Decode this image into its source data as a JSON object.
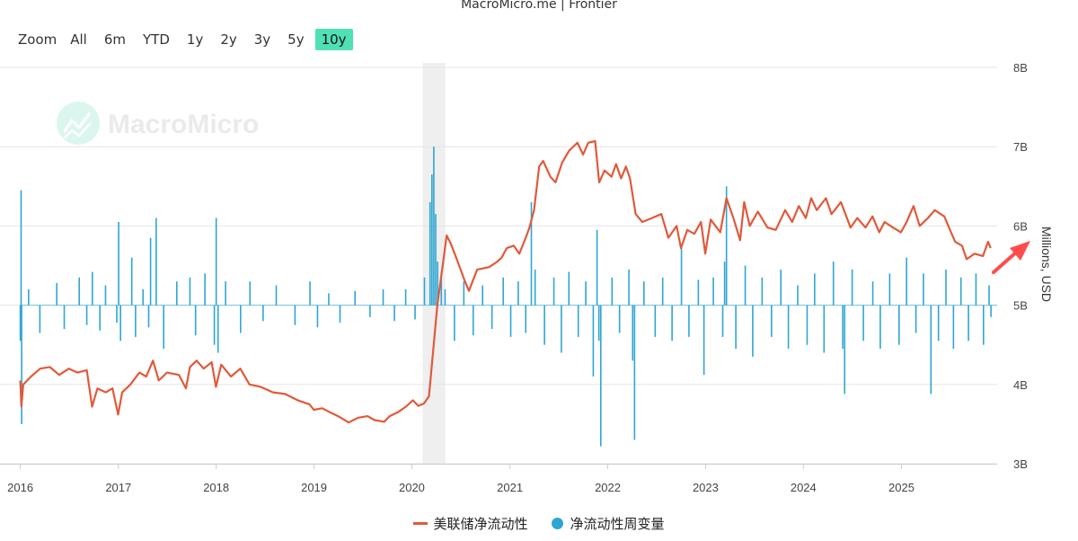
{
  "header": {
    "credit": "MacroMicro.me | Frontier"
  },
  "zoom": {
    "label": "Zoom",
    "buttons": [
      "All",
      "6m",
      "YTD",
      "1y",
      "2y",
      "3y",
      "5y",
      "10y"
    ],
    "active": "10y",
    "active_color": "#4fe0b6"
  },
  "watermark": {
    "text": "MacroMicro"
  },
  "chart_data": {
    "type": "line",
    "x_axis": {
      "type": "time",
      "range": [
        "2015-12-30",
        "2025-12-24"
      ],
      "tick_labels": [
        "2016",
        "2017",
        "2018",
        "2019",
        "2020",
        "2021",
        "2022",
        "2023",
        "2024",
        "2025"
      ]
    },
    "y_axis": {
      "range": [
        3,
        8
      ],
      "tick_labels": [
        "3B",
        "4B",
        "5B",
        "6B",
        "7B",
        "8B"
      ],
      "ticks": [
        3,
        4,
        5,
        6,
        7,
        8
      ],
      "label": "Millions, USD",
      "position": "right"
    },
    "grid": true,
    "legend_position": "bottom",
    "highlight_band": {
      "from": "2020-02-10",
      "to": "2020-05-05",
      "color": "#efefef"
    },
    "series": [
      {
        "name": "美联储净流动性",
        "type": "line",
        "color": "#e05a3a",
        "points": [
          [
            "2016-01-01",
            4.05
          ],
          [
            "2016-01-05",
            3.72
          ],
          [
            "2016-01-12",
            4.0
          ],
          [
            "2016-02-10",
            4.1
          ],
          [
            "2016-03-15",
            4.2
          ],
          [
            "2016-04-20",
            4.22
          ],
          [
            "2016-05-25",
            4.12
          ],
          [
            "2016-06-30",
            4.2
          ],
          [
            "2016-08-01",
            4.15
          ],
          [
            "2016-09-05",
            4.18
          ],
          [
            "2016-09-25",
            3.72
          ],
          [
            "2016-10-15",
            3.95
          ],
          [
            "2016-11-15",
            3.9
          ],
          [
            "2016-12-10",
            3.95
          ],
          [
            "2016-12-31",
            3.62
          ],
          [
            "2017-01-15",
            3.9
          ],
          [
            "2017-02-15",
            4.0
          ],
          [
            "2017-03-20",
            4.15
          ],
          [
            "2017-04-15",
            4.1
          ],
          [
            "2017-05-10",
            4.3
          ],
          [
            "2017-06-01",
            4.05
          ],
          [
            "2017-07-01",
            4.15
          ],
          [
            "2017-08-15",
            4.12
          ],
          [
            "2017-09-10",
            3.95
          ],
          [
            "2017-09-25",
            4.22
          ],
          [
            "2017-10-20",
            4.3
          ],
          [
            "2017-11-15",
            4.2
          ],
          [
            "2017-12-15",
            4.28
          ],
          [
            "2017-12-31",
            3.97
          ],
          [
            "2018-01-20",
            4.25
          ],
          [
            "2018-02-25",
            4.1
          ],
          [
            "2018-04-01",
            4.2
          ],
          [
            "2018-05-05",
            4.0
          ],
          [
            "2018-06-15",
            3.97
          ],
          [
            "2018-08-01",
            3.9
          ],
          [
            "2018-09-15",
            3.88
          ],
          [
            "2018-11-01",
            3.8
          ],
          [
            "2018-12-15",
            3.75
          ],
          [
            "2018-12-31",
            3.68
          ],
          [
            "2019-02-01",
            3.7
          ],
          [
            "2019-03-01",
            3.65
          ],
          [
            "2019-04-01",
            3.6
          ],
          [
            "2019-05-10",
            3.52
          ],
          [
            "2019-06-15",
            3.58
          ],
          [
            "2019-07-20",
            3.6
          ],
          [
            "2019-08-15",
            3.55
          ],
          [
            "2019-09-20",
            3.53
          ],
          [
            "2019-10-10",
            3.6
          ],
          [
            "2019-11-10",
            3.65
          ],
          [
            "2019-12-10",
            3.72
          ],
          [
            "2020-01-05",
            3.8
          ],
          [
            "2020-01-25",
            3.73
          ],
          [
            "2020-02-15",
            3.76
          ],
          [
            "2020-03-05",
            3.85
          ],
          [
            "2020-03-20",
            4.4
          ],
          [
            "2020-04-05",
            5.0
          ],
          [
            "2020-04-25",
            5.5
          ],
          [
            "2020-05-10",
            5.88
          ],
          [
            "2020-05-25",
            5.78
          ],
          [
            "2020-06-20",
            5.55
          ],
          [
            "2020-07-15",
            5.32
          ],
          [
            "2020-08-01",
            5.18
          ],
          [
            "2020-09-01",
            5.45
          ],
          [
            "2020-10-15",
            5.48
          ],
          [
            "2020-11-15",
            5.55
          ],
          [
            "2020-12-01",
            5.6
          ],
          [
            "2020-12-20",
            5.72
          ],
          [
            "2021-01-15",
            5.75
          ],
          [
            "2021-02-05",
            5.65
          ],
          [
            "2021-03-01",
            5.85
          ],
          [
            "2021-03-15",
            5.98
          ],
          [
            "2021-04-01",
            6.2
          ],
          [
            "2021-04-20",
            6.75
          ],
          [
            "2021-05-05",
            6.82
          ],
          [
            "2021-06-01",
            6.62
          ],
          [
            "2021-06-20",
            6.55
          ],
          [
            "2021-07-15",
            6.8
          ],
          [
            "2021-08-10",
            6.95
          ],
          [
            "2021-09-10",
            7.05
          ],
          [
            "2021-10-01",
            6.9
          ],
          [
            "2021-10-20",
            7.05
          ],
          [
            "2021-11-15",
            7.07
          ],
          [
            "2021-11-30",
            6.55
          ],
          [
            "2021-12-20",
            6.7
          ],
          [
            "2022-01-15",
            6.62
          ],
          [
            "2022-02-01",
            6.78
          ],
          [
            "2022-02-20",
            6.6
          ],
          [
            "2022-03-10",
            6.75
          ],
          [
            "2022-03-25",
            6.6
          ],
          [
            "2022-04-15",
            6.15
          ],
          [
            "2022-05-10",
            6.05
          ],
          [
            "2022-06-15",
            6.1
          ],
          [
            "2022-07-20",
            6.15
          ],
          [
            "2022-08-15",
            5.85
          ],
          [
            "2022-09-15",
            6.0
          ],
          [
            "2022-10-01",
            5.72
          ],
          [
            "2022-10-25",
            5.95
          ],
          [
            "2022-11-20",
            5.9
          ],
          [
            "2022-12-15",
            6.05
          ],
          [
            "2022-12-31",
            5.65
          ],
          [
            "2023-01-20",
            6.08
          ],
          [
            "2023-02-25",
            5.92
          ],
          [
            "2023-03-20",
            6.35
          ],
          [
            "2023-04-15",
            6.1
          ],
          [
            "2023-05-10",
            5.82
          ],
          [
            "2023-05-25",
            6.3
          ],
          [
            "2023-06-15",
            6.0
          ],
          [
            "2023-07-15",
            6.18
          ],
          [
            "2023-08-20",
            5.98
          ],
          [
            "2023-09-20",
            5.95
          ],
          [
            "2023-10-25",
            6.2
          ],
          [
            "2023-11-20",
            6.05
          ],
          [
            "2023-12-15",
            6.25
          ],
          [
            "2024-01-10",
            6.1
          ],
          [
            "2024-01-30",
            6.35
          ],
          [
            "2024-02-20",
            6.2
          ],
          [
            "2024-03-25",
            6.35
          ],
          [
            "2024-04-15",
            6.15
          ],
          [
            "2024-05-20",
            6.3
          ],
          [
            "2024-06-25",
            5.98
          ],
          [
            "2024-07-20",
            6.1
          ],
          [
            "2024-08-20",
            5.98
          ],
          [
            "2024-09-15",
            6.12
          ],
          [
            "2024-10-10",
            5.92
          ],
          [
            "2024-10-30",
            6.05
          ],
          [
            "2024-11-30",
            5.98
          ],
          [
            "2024-12-30",
            5.92
          ],
          [
            "2025-01-20",
            6.05
          ],
          [
            "2025-02-15",
            6.25
          ],
          [
            "2025-03-10",
            6.0
          ],
          [
            "2025-04-10",
            6.1
          ],
          [
            "2025-05-05",
            6.2
          ],
          [
            "2025-06-10",
            6.12
          ],
          [
            "2025-07-01",
            5.95
          ],
          [
            "2025-07-20",
            5.8
          ],
          [
            "2025-08-15",
            5.75
          ],
          [
            "2025-09-01",
            5.58
          ],
          [
            "2025-10-01",
            5.65
          ],
          [
            "2025-11-01",
            5.62
          ],
          [
            "2025-11-20",
            5.8
          ],
          [
            "2025-11-30",
            5.72
          ]
        ]
      },
      {
        "name": "净流动性周变量",
        "type": "column",
        "color": "#2ea6d3",
        "baseline": 5,
        "points": [
          [
            "2016-01-01",
            4.55
          ],
          [
            "2016-01-04",
            6.45
          ],
          [
            "2016-01-06",
            3.5
          ],
          [
            "2016-02-01",
            5.2
          ],
          [
            "2016-03-14",
            4.65
          ],
          [
            "2016-05-16",
            5.28
          ],
          [
            "2016-06-13",
            4.7
          ],
          [
            "2016-08-08",
            5.35
          ],
          [
            "2016-09-05",
            4.75
          ],
          [
            "2016-09-26",
            5.42
          ],
          [
            "2016-10-24",
            4.68
          ],
          [
            "2016-11-14",
            5.25
          ],
          [
            "2016-12-26",
            4.78
          ],
          [
            "2017-01-02",
            6.05
          ],
          [
            "2017-01-09",
            4.55
          ],
          [
            "2017-02-20",
            5.6
          ],
          [
            "2017-03-06",
            4.6
          ],
          [
            "2017-04-03",
            5.2
          ],
          [
            "2017-04-24",
            4.72
          ],
          [
            "2017-05-01",
            5.85
          ],
          [
            "2017-05-22",
            6.1
          ],
          [
            "2017-06-19",
            4.45
          ],
          [
            "2017-08-07",
            5.3
          ],
          [
            "2017-09-25",
            5.35
          ],
          [
            "2017-10-16",
            4.62
          ],
          [
            "2017-11-20",
            5.4
          ],
          [
            "2017-12-25",
            4.5
          ],
          [
            "2018-01-01",
            6.1
          ],
          [
            "2018-01-08",
            4.4
          ],
          [
            "2018-02-05",
            5.3
          ],
          [
            "2018-04-02",
            4.65
          ],
          [
            "2018-05-07",
            5.3
          ],
          [
            "2018-06-25",
            4.8
          ],
          [
            "2018-08-13",
            5.25
          ],
          [
            "2018-10-22",
            4.75
          ],
          [
            "2018-12-17",
            5.3
          ],
          [
            "2019-01-14",
            4.72
          ],
          [
            "2019-02-25",
            5.15
          ],
          [
            "2019-04-08",
            4.78
          ],
          [
            "2019-06-03",
            5.18
          ],
          [
            "2019-07-29",
            4.85
          ],
          [
            "2019-09-16",
            5.2
          ],
          [
            "2019-10-28",
            4.8
          ],
          [
            "2019-12-09",
            5.2
          ],
          [
            "2020-01-13",
            4.82
          ],
          [
            "2020-02-17",
            5.35
          ],
          [
            "2020-03-09",
            6.3
          ],
          [
            "2020-03-16",
            6.65
          ],
          [
            "2020-03-23",
            7.0
          ],
          [
            "2020-03-30",
            6.15
          ],
          [
            "2020-04-06",
            5.55
          ],
          [
            "2020-04-20",
            5.42
          ],
          [
            "2020-05-04",
            5.2
          ],
          [
            "2020-06-08",
            4.55
          ],
          [
            "2020-07-13",
            5.3
          ],
          [
            "2020-08-17",
            4.62
          ],
          [
            "2020-09-21",
            5.25
          ],
          [
            "2020-10-26",
            4.7
          ],
          [
            "2020-12-07",
            5.35
          ],
          [
            "2021-01-04",
            4.6
          ],
          [
            "2021-02-01",
            5.3
          ],
          [
            "2021-03-01",
            4.65
          ],
          [
            "2021-03-22",
            6.3
          ],
          [
            "2021-04-05",
            5.45
          ],
          [
            "2021-05-10",
            4.5
          ],
          [
            "2021-06-14",
            5.35
          ],
          [
            "2021-07-12",
            4.4
          ],
          [
            "2021-08-09",
            5.42
          ],
          [
            "2021-09-13",
            4.6
          ],
          [
            "2021-10-11",
            5.3
          ],
          [
            "2021-11-08",
            4.1
          ],
          [
            "2021-11-22",
            5.95
          ],
          [
            "2021-11-29",
            4.55
          ],
          [
            "2021-12-06",
            3.22
          ],
          [
            "2022-01-17",
            5.35
          ],
          [
            "2022-02-14",
            4.65
          ],
          [
            "2022-03-21",
            5.45
          ],
          [
            "2022-04-04",
            4.3
          ],
          [
            "2022-04-11",
            3.3
          ],
          [
            "2022-05-16",
            5.3
          ],
          [
            "2022-06-27",
            4.6
          ],
          [
            "2022-07-25",
            5.35
          ],
          [
            "2022-08-29",
            4.55
          ],
          [
            "2022-10-03",
            5.75
          ],
          [
            "2022-10-31",
            4.6
          ],
          [
            "2022-12-05",
            5.32
          ],
          [
            "2022-12-26",
            4.12
          ],
          [
            "2023-01-30",
            5.35
          ],
          [
            "2023-03-06",
            4.6
          ],
          [
            "2023-03-13",
            5.55
          ],
          [
            "2023-03-20",
            6.5
          ],
          [
            "2023-04-24",
            4.45
          ],
          [
            "2023-05-29",
            5.5
          ],
          [
            "2023-06-26",
            4.35
          ],
          [
            "2023-07-31",
            5.35
          ],
          [
            "2023-09-04",
            4.6
          ],
          [
            "2023-10-09",
            5.45
          ],
          [
            "2023-11-06",
            4.45
          ],
          [
            "2023-12-11",
            5.25
          ],
          [
            "2024-01-15",
            4.5
          ],
          [
            "2024-02-12",
            5.4
          ],
          [
            "2024-03-18",
            4.4
          ],
          [
            "2024-04-22",
            5.55
          ],
          [
            "2024-05-27",
            4.45
          ],
          [
            "2024-06-03",
            3.88
          ],
          [
            "2024-07-01",
            5.45
          ],
          [
            "2024-08-12",
            4.55
          ],
          [
            "2024-09-16",
            5.3
          ],
          [
            "2024-10-14",
            4.45
          ],
          [
            "2024-11-18",
            5.4
          ],
          [
            "2024-12-23",
            4.5
          ],
          [
            "2025-01-20",
            5.6
          ],
          [
            "2025-02-24",
            4.65
          ],
          [
            "2025-03-24",
            5.4
          ],
          [
            "2025-04-21",
            3.88
          ],
          [
            "2025-05-19",
            4.55
          ],
          [
            "2025-06-16",
            5.45
          ],
          [
            "2025-07-14",
            4.45
          ],
          [
            "2025-08-11",
            5.35
          ],
          [
            "2025-09-08",
            4.55
          ],
          [
            "2025-10-06",
            5.4
          ],
          [
            "2025-11-03",
            4.5
          ],
          [
            "2025-11-24",
            5.25
          ],
          [
            "2025-12-01",
            4.85
          ]
        ]
      }
    ]
  },
  "legend": {
    "items": [
      {
        "label": "美联储净流动性",
        "color": "#e05a3a",
        "marker": "line"
      },
      {
        "label": "净流动性周变量",
        "color": "#2ea6d3",
        "marker": "circle"
      }
    ]
  },
  "annotation": {
    "type": "arrow",
    "color": "#ff4d4d"
  }
}
